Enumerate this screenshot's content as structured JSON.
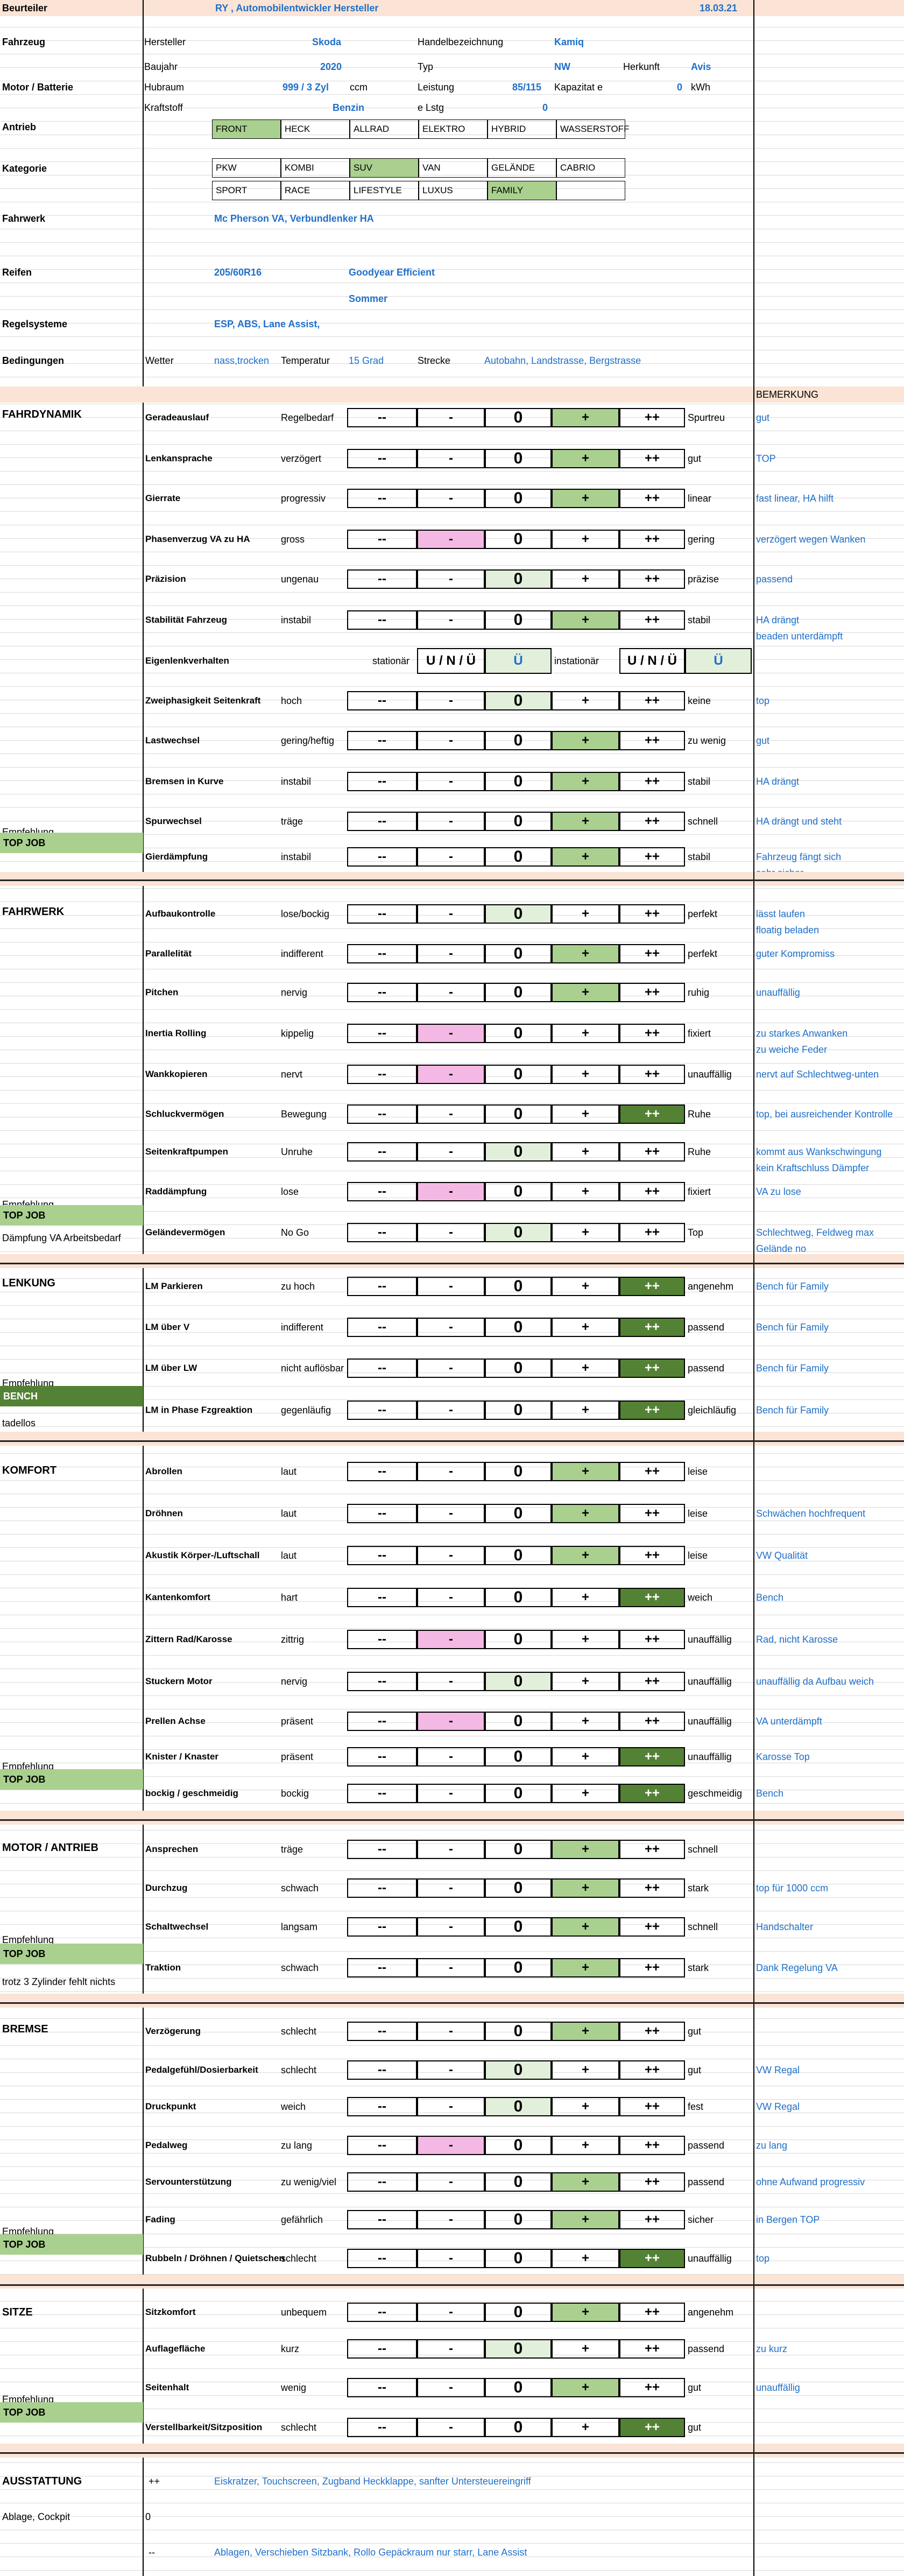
{
  "header": {
    "label": "Beurteiler",
    "value": "RY , Automobilentwickler Hersteller",
    "date": "18.03.21"
  },
  "vehicle": {
    "section": "Fahrzeug",
    "hersteller_label": "Hersteller",
    "hersteller": "Skoda",
    "handel_label": "Handelbezeichnung",
    "handel": "Kamiq",
    "baujahr_label": "Baujahr",
    "baujahr": "2020",
    "typ_label": "Typ",
    "typ": "NW",
    "herkunft_label": "Herkunft",
    "herkunft": "Avis",
    "motor_section": "Motor / Batterie",
    "hubraum_label": "Hubraum",
    "hubraum": "999 / 3 Zyl",
    "hubraum_unit": "ccm",
    "leistung_label": "Leistung",
    "leistung": "85/115",
    "kapazitaet_label": "Kapazitat e",
    "kapazitaet": "0",
    "kapazitaet_unit": "kWh",
    "kraftstoff_label": "Kraftstoff",
    "kraftstoff": "Benzin",
    "elstg_label": "e Lstg",
    "elstg": "0"
  },
  "antrieb": {
    "label": "Antrieb",
    "options": [
      "FRONT",
      "HECK",
      "ALLRAD",
      "ELEKTRO",
      "HYBRID",
      "WASSERSTOFF"
    ]
  },
  "kategorie": {
    "label": "Kategorie",
    "row1": [
      "PKW",
      "KOMBI",
      "SUV",
      "VAN",
      "GELÄNDE",
      "CABRIO"
    ],
    "row2": [
      "SPORT",
      "RACE",
      "LIFESTYLE",
      "LUXUS",
      "FAMILY",
      ""
    ]
  },
  "fahrwerk_info": {
    "label": "Fahrwerk",
    "value": "Mc Pherson VA, Verbundlenker HA"
  },
  "reifen": {
    "label": "Reifen",
    "size": "205/60R16",
    "brand": "Goodyear Efficient",
    "season": "Sommer"
  },
  "regelsysteme": {
    "label": "Regelsysteme",
    "value": "ESP, ABS, Lane Assist,"
  },
  "bedingungen": {
    "label": "Bedingungen",
    "wetter_label": "Wetter",
    "wetter": "nass,trocken",
    "temp_label": "Temperatur",
    "temp": "15 Grad",
    "strecke_label": "Strecke",
    "strecke": "Autobahn, Landstrasse, Bergstrasse"
  },
  "bemerkung_header": "BEMERKUNG",
  "scale": {
    "mm": "- -",
    "m": "-",
    "z": "0",
    "p": "+",
    "pp": "++",
    "mm2": "--"
  },
  "uno": {
    "left": "stationär",
    "mid": "instationär",
    "label": "U / N / Ü",
    "value": "Ü"
  },
  "sections": [
    {
      "title": "FAHRDYNAMIK",
      "empfehlung": "Empfehlung",
      "badge": "TOP JOB",
      "note": "",
      "rows": [
        {
          "label": "Geradeauslauf",
          "neg": "Regelbedarf",
          "pos": "Spurtreu",
          "rating": "+",
          "remark": [
            "gut"
          ]
        },
        {
          "label": "Lenkansprache",
          "neg": "verzögert",
          "pos": "gut",
          "rating": "+",
          "remark": [
            "TOP"
          ]
        },
        {
          "label": "Gierrate",
          "neg": "progressiv",
          "pos": "linear",
          "rating": "+",
          "remark": [
            "fast linear, HA hilft"
          ]
        },
        {
          "label": "Phasenverzug VA zu HA",
          "neg": "gross",
          "pos": "gering",
          "rating": "-",
          "remark": [
            "verzögert wegen Wanken"
          ]
        },
        {
          "label": "Präzision",
          "neg": "ungenau",
          "pos": "präzise",
          "rating": "0",
          "remark": [
            "passend"
          ]
        },
        {
          "label": "Stabilität Fahrzeug",
          "neg": "instabil",
          "pos": "stabil",
          "rating": "+",
          "remark": [
            "HA drängt",
            "beaden unterdämpft"
          ]
        },
        {
          "label": "Eigenlenkverhalten",
          "type": "uno",
          "remark": []
        },
        {
          "label": "Zweiphasigkeit Seitenkraft",
          "neg": "hoch",
          "pos": "keine",
          "rating": "0",
          "remark": [
            "top"
          ]
        },
        {
          "label": "Lastwechsel",
          "neg": "gering/heftig",
          "pos": "zu wenig",
          "rating": "+",
          "remark": [
            "gut"
          ]
        },
        {
          "label": "Bremsen in Kurve",
          "neg": "instabil",
          "pos": "stabil",
          "rating": "+",
          "remark": [
            "HA drängt"
          ]
        },
        {
          "label": "Spurwechsel",
          "neg": "träge",
          "pos": "schnell",
          "rating": "+",
          "remark": [
            "HA drängt und steht"
          ]
        },
        {
          "label": "Gierdämpfung",
          "neg": "instabil",
          "pos": "stabil",
          "rating": "+",
          "remark": [
            "Fahrzeug fängt sich",
            "sehr sicher"
          ]
        }
      ]
    },
    {
      "title": "FAHRWERK",
      "empfehlung": "Empfehlung",
      "badge": "TOP JOB",
      "note": "Dämpfung VA Arbeitsbedarf",
      "rows": [
        {
          "label": "Aufbaukontrolle",
          "neg": "lose/bockig",
          "pos": "perfekt",
          "rating": "0",
          "remark": [
            "lässt laufen",
            "floatig beladen"
          ]
        },
        {
          "label": "Parallelität",
          "neg": "indifferent",
          "pos": "perfekt",
          "rating": "+",
          "remark": [
            "guter Kompromiss"
          ]
        },
        {
          "label": "Pitchen",
          "neg": "nervig",
          "pos": "ruhig",
          "rating": "+",
          "remark": [
            "unauffällig"
          ]
        },
        {
          "label": "Inertia Rolling",
          "neg": "kippelig",
          "pos": "fixiert",
          "rating": "-",
          "remark": [
            "zu starkes Anwanken",
            "zu weiche Feder"
          ]
        },
        {
          "label": "Wankkopieren",
          "neg": "nervt",
          "pos": "unauffällig",
          "rating": "-",
          "remark": [
            "nervt auf Schlechtweg-unten"
          ]
        },
        {
          "label": "Schluckvermögen",
          "neg": "Bewegung",
          "pos": "Ruhe",
          "rating": "++",
          "remark": [
            "top, bei ausreichender Kontrolle"
          ]
        },
        {
          "label": "Seitenkraftpumpen",
          "neg": "Unruhe",
          "pos": "Ruhe",
          "rating": "0",
          "remark": [
            "kommt aus Wankschwingung",
            "kein Kraftschluss Dämpfer"
          ]
        },
        {
          "label": "Raddämpfung",
          "neg": "lose",
          "pos": "fixiert",
          "rating": "-",
          "remark": [
            "VA zu lose"
          ]
        },
        {
          "label": "Geländevermögen",
          "neg": "No Go",
          "pos": "Top",
          "rating": "0",
          "remark": [
            "Schlechtweg, Feldweg max",
            "Gelände no"
          ]
        }
      ]
    },
    {
      "title": "LENKUNG",
      "empfehlung": "Empfehlung",
      "badge": "BENCH",
      "note": "tadellos",
      "rows": [
        {
          "label": "LM Parkieren",
          "neg": "zu hoch",
          "pos": "angenehm",
          "rating": "++",
          "remark": [
            "Bench für Family"
          ]
        },
        {
          "label": "LM über V",
          "neg": "indifferent",
          "pos": "passend",
          "rating": "++",
          "remark": [
            "Bench für Family"
          ]
        },
        {
          "label": "LM über LW",
          "neg": "nicht auflösbar",
          "pos": "passend",
          "rating": "++",
          "remark": [
            "Bench für Family"
          ]
        },
        {
          "label": "LM in Phase Fzgreaktion",
          "neg": "gegenläufig",
          "pos": "gleichläufig",
          "rating": "++",
          "remark": [
            "Bench für Family"
          ]
        }
      ]
    },
    {
      "title": "KOMFORT",
      "empfehlung": "Empfehlung",
      "badge": "TOP JOB",
      "note": "",
      "rows": [
        {
          "label": "Abrollen",
          "neg": "laut",
          "pos": "leise",
          "rating": "+",
          "remark": []
        },
        {
          "label": "Dröhnen",
          "neg": "laut",
          "pos": "leise",
          "rating": "+",
          "remark": [
            "Schwächen hochfrequent"
          ]
        },
        {
          "label": "Akustik Körper-/Luftschall",
          "neg": "laut",
          "pos": "leise",
          "rating": "+",
          "remark": [
            "VW Qualität"
          ]
        },
        {
          "label": "Kantenkomfort",
          "neg": "hart",
          "pos": "weich",
          "rating": "++",
          "remark": [
            "Bench"
          ]
        },
        {
          "label": "Zittern Rad/Karosse",
          "neg": "zittrig",
          "pos": "unauffällig",
          "rating": "-",
          "remark": [
            "Rad, nicht Karosse"
          ]
        },
        {
          "label": "Stuckern Motor",
          "neg": "nervig",
          "pos": "unauffällig",
          "rating": "0",
          "remark": [
            "unauffällig da Aufbau weich"
          ]
        },
        {
          "label": "Prellen Achse",
          "neg": "präsent",
          "pos": "unauffällig",
          "rating": "-",
          "remark": [
            "VA unterdämpft"
          ]
        },
        {
          "label": "Knister / Knaster",
          "neg": "präsent",
          "pos": "unauffällig",
          "rating": "++",
          "remark": [
            "Karosse Top"
          ]
        },
        {
          "label": "bockig / geschmeidig",
          "neg": "bockig",
          "pos": "geschmeidig",
          "rating": "++",
          "remark": [
            "Bench"
          ]
        }
      ]
    },
    {
      "title": "MOTOR / ANTRIEB",
      "empfehlung": "Empfehlung",
      "badge": "TOP JOB",
      "note": "trotz 3 Zylinder fehlt nichts",
      "rows": [
        {
          "label": "Ansprechen",
          "neg": "träge",
          "pos": "schnell",
          "rating": "+",
          "remark": []
        },
        {
          "label": "Durchzug",
          "neg": "schwach",
          "pos": "stark",
          "rating": "+",
          "remark": [
            "top für 1000 ccm"
          ]
        },
        {
          "label": "Schaltwechsel",
          "neg": "langsam",
          "pos": "schnell",
          "rating": "+",
          "remark": [
            "Handschalter"
          ]
        },
        {
          "label": "Traktion",
          "neg": "schwach",
          "pos": "stark",
          "rating": "+",
          "remark": [
            "Dank Regelung VA"
          ]
        }
      ]
    },
    {
      "title": "BREMSE",
      "empfehlung": "Empfehlung",
      "badge": "TOP JOB",
      "note": "",
      "rows": [
        {
          "label": "Verzögerung",
          "neg": "schlecht",
          "pos": "gut",
          "rating": "+",
          "remark": []
        },
        {
          "label": "Pedalgefühl/Dosierbarkeit",
          "neg": "schlecht",
          "pos": "gut",
          "rating": "0",
          "remark": [
            "VW Regal"
          ]
        },
        {
          "label": "Druckpunkt",
          "neg": "weich",
          "pos": "fest",
          "rating": "0",
          "remark": [
            "VW Regal"
          ]
        },
        {
          "label": "Pedalweg",
          "neg": "zu lang",
          "pos": "passend",
          "rating": "-",
          "remark": [
            "zu lang"
          ]
        },
        {
          "label": "Servounterstützung",
          "neg": "zu wenig/viel",
          "pos": "passend",
          "rating": "+",
          "remark": [
            "ohne Aufwand progressiv"
          ]
        },
        {
          "label": "Fading",
          "neg": "gefährlich",
          "pos": "sicher",
          "rating": "+",
          "remark": [
            "in Bergen TOP"
          ]
        },
        {
          "label": "Rubbeln / Dröhnen / Quietschen",
          "neg": "schlecht",
          "pos": "unauffällig",
          "rating": "++",
          "remark": [
            "top"
          ]
        }
      ]
    },
    {
      "title": "SITZE",
      "empfehlung": "Empfehlung",
      "badge": "TOP JOB",
      "note": "",
      "rows": [
        {
          "label": "Sitzkomfort",
          "neg": "unbequem",
          "pos": "angenehm",
          "rating": "+",
          "remark": []
        },
        {
          "label": "Auflagefläche",
          "neg": "kurz",
          "pos": "passend",
          "rating": "0",
          "remark": [
            "zu kurz"
          ]
        },
        {
          "label": "Seitenhalt",
          "neg": "wenig",
          "pos": "gut",
          "rating": "+",
          "remark": [
            "unauffällig"
          ]
        },
        {
          "label": "Verstellbarkeit/Sitzposition",
          "neg": "schlecht",
          "pos": "gut",
          "rating": "++",
          "remark": []
        }
      ]
    }
  ],
  "ausstattung": {
    "title": "AUSSTATTUNG",
    "plus_sign": "++",
    "plus_text": "Eiskratzer, Touchscreen, Zugband Heckklappe, sanfter Untersteuereingriff",
    "ablage_label": "Ablage, Cockpit",
    "ablage_value": "0",
    "minus_sign": "--",
    "minus_text": "Ablagen, Verschieben Sitzbank, Rollo Gepäckraum nur starr, Lane Assist"
  }
}
